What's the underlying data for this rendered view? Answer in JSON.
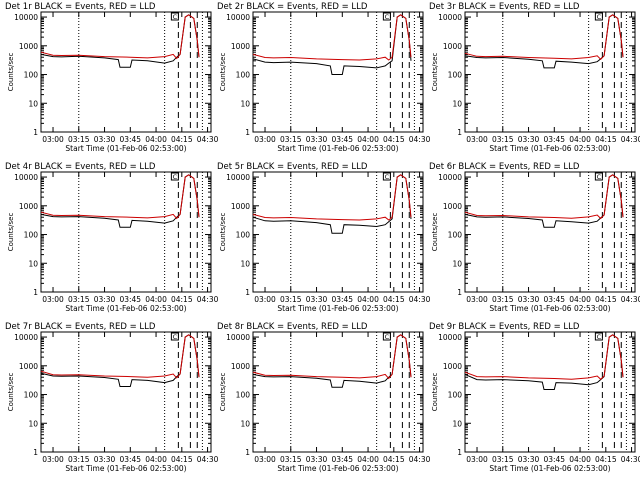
{
  "chart_data": [
    {
      "type": "line",
      "title": "Det 1r  BLACK = Events, RED = LLD",
      "ylabel": "Counts/sec",
      "xlabel": "Start Time (01-Feb-06 02:53:00)",
      "x_ticks": [
        "03:00",
        "03:15",
        "03:30",
        "03:45",
        "04:00",
        "04:15",
        "04:30"
      ],
      "ylim": [
        1,
        15000
      ],
      "y_scale": "log",
      "y_ticks": [
        "1",
        "10",
        "100",
        "1000",
        "10000"
      ],
      "series": [
        {
          "color": "#000000",
          "x": [
            "02:53",
            "03:00",
            "03:05",
            "03:15",
            "03:30",
            "03:38",
            "03:39",
            "03:45",
            "03:46",
            "03:55",
            "04:05",
            "04:10",
            "04:12",
            "04:14",
            "04:17",
            "04:19",
            "04:22",
            "04:24",
            "04:25"
          ],
          "values": [
            500,
            420,
            410,
            430,
            380,
            330,
            180,
            180,
            320,
            300,
            250,
            300,
            400,
            500,
            10000,
            12000,
            9000,
            1500,
            400
          ]
        },
        {
          "color": "#cc0000",
          "x": [
            "02:53",
            "03:00",
            "03:05",
            "03:15",
            "03:30",
            "03:45",
            "03:55",
            "04:05",
            "04:10",
            "04:12",
            "04:14",
            "04:17",
            "04:19",
            "04:22",
            "04:24",
            "04:25"
          ],
          "values": [
            600,
            470,
            460,
            470,
            420,
            400,
            380,
            420,
            500,
            360,
            500,
            10000,
            12000,
            9000,
            1500,
            400
          ]
        }
      ]
    },
    {
      "type": "line",
      "title": "Det 2r  BLACK = Events, RED = LLD",
      "ylabel": "Counts/sec",
      "xlabel": "Start Time (01-Feb-06 02:53:00)",
      "x_ticks": [
        "03:00",
        "03:15",
        "03:30",
        "03:45",
        "04:00",
        "04:15",
        "04:30"
      ],
      "ylim": [
        1,
        15000
      ],
      "y_scale": "log",
      "y_ticks": [
        "1",
        "10",
        "100",
        "1000",
        "10000"
      ],
      "series": [
        {
          "color": "#000000",
          "x": [
            "02:53",
            "03:00",
            "03:05",
            "03:15",
            "03:30",
            "03:38",
            "03:39",
            "03:45",
            "03:46",
            "03:55",
            "04:05",
            "04:10",
            "04:12",
            "04:14",
            "04:17",
            "04:19",
            "04:22",
            "04:24",
            "04:25"
          ],
          "values": [
            350,
            270,
            260,
            270,
            240,
            200,
            100,
            100,
            200,
            190,
            170,
            200,
            250,
            300,
            10000,
            12000,
            9000,
            1500,
            300
          ]
        },
        {
          "color": "#cc0000",
          "x": [
            "02:53",
            "03:00",
            "03:05",
            "03:15",
            "03:30",
            "03:45",
            "03:55",
            "04:05",
            "04:10",
            "04:12",
            "04:14",
            "04:17",
            "04:19",
            "04:22",
            "04:24",
            "04:25"
          ],
          "values": [
            500,
            390,
            380,
            390,
            350,
            330,
            320,
            350,
            400,
            320,
            400,
            10000,
            12000,
            9000,
            1500,
            400
          ]
        }
      ]
    },
    {
      "type": "line",
      "title": "Det 3r  BLACK = Events, RED = LLD",
      "ylabel": "Counts/sec",
      "xlabel": "Start Time (01-Feb-06 02:53:00)",
      "x_ticks": [
        "03:00",
        "03:15",
        "03:30",
        "03:45",
        "04:00",
        "04:15",
        "04:30"
      ],
      "ylim": [
        1,
        15000
      ],
      "y_scale": "log",
      "y_ticks": [
        "1",
        "10",
        "100",
        "1000",
        "10000"
      ],
      "series": [
        {
          "color": "#000000",
          "x": [
            "02:53",
            "03:00",
            "03:05",
            "03:15",
            "03:30",
            "03:38",
            "03:39",
            "03:45",
            "03:46",
            "03:55",
            "04:05",
            "04:10",
            "04:12",
            "04:14",
            "04:17",
            "04:19",
            "04:22",
            "04:24",
            "04:25"
          ],
          "values": [
            450,
            390,
            380,
            390,
            340,
            300,
            170,
            170,
            290,
            270,
            240,
            280,
            350,
            450,
            10000,
            12000,
            9000,
            1500,
            400
          ]
        },
        {
          "color": "#cc0000",
          "x": [
            "02:53",
            "03:00",
            "03:05",
            "03:15",
            "03:30",
            "03:45",
            "03:55",
            "04:05",
            "04:10",
            "04:12",
            "04:14",
            "04:17",
            "04:19",
            "04:22",
            "04:24",
            "04:25"
          ],
          "values": [
            550,
            430,
            420,
            430,
            390,
            370,
            350,
            390,
            450,
            340,
            450,
            10000,
            12000,
            9000,
            1500,
            400
          ]
        }
      ]
    },
    {
      "type": "line",
      "title": "Det 4r  BLACK = Events, RED = LLD",
      "ylabel": "Counts/sec",
      "xlabel": "Start Time (01-Feb-06 02:53:00)",
      "x_ticks": [
        "03:00",
        "03:15",
        "03:30",
        "03:45",
        "04:00",
        "04:15",
        "04:30"
      ],
      "ylim": [
        1,
        15000
      ],
      "y_scale": "log",
      "y_ticks": [
        "1",
        "10",
        "100",
        "1000",
        "10000"
      ],
      "series": [
        {
          "color": "#000000",
          "x": [
            "02:53",
            "03:00",
            "03:05",
            "03:15",
            "03:30",
            "03:38",
            "03:39",
            "03:45",
            "03:46",
            "03:55",
            "04:05",
            "04:10",
            "04:12",
            "04:14",
            "04:17",
            "04:19",
            "04:22",
            "04:24",
            "04:25"
          ],
          "values": [
            500,
            420,
            410,
            420,
            370,
            320,
            180,
            180,
            310,
            290,
            250,
            300,
            400,
            500,
            10000,
            12000,
            9000,
            1500,
            400
          ]
        },
        {
          "color": "#cc0000",
          "x": [
            "02:53",
            "03:00",
            "03:05",
            "03:15",
            "03:30",
            "03:45",
            "03:55",
            "04:05",
            "04:10",
            "04:12",
            "04:14",
            "04:17",
            "04:19",
            "04:22",
            "04:24",
            "04:25"
          ],
          "values": [
            600,
            470,
            460,
            470,
            420,
            400,
            380,
            420,
            500,
            360,
            500,
            10000,
            12000,
            9000,
            1500,
            400
          ]
        }
      ]
    },
    {
      "type": "line",
      "title": "Det 5r  BLACK = Events, RED = LLD",
      "ylabel": "Counts/sec",
      "xlabel": "Start Time (01-Feb-06 02:53:00)",
      "x_ticks": [
        "03:00",
        "03:15",
        "03:30",
        "03:45",
        "04:00",
        "04:15",
        "04:30"
      ],
      "ylim": [
        1,
        15000
      ],
      "y_scale": "log",
      "y_ticks": [
        "1",
        "10",
        "100",
        "1000",
        "10000"
      ],
      "series": [
        {
          "color": "#000000",
          "x": [
            "02:53",
            "03:00",
            "03:05",
            "03:15",
            "03:30",
            "03:38",
            "03:39",
            "03:45",
            "03:46",
            "03:55",
            "04:05",
            "04:10",
            "04:12",
            "04:14",
            "04:17",
            "04:19",
            "04:22",
            "04:24",
            "04:25"
          ],
          "values": [
            400,
            300,
            290,
            300,
            260,
            220,
            110,
            110,
            220,
            210,
            190,
            220,
            280,
            350,
            10000,
            12000,
            9000,
            1500,
            350
          ]
        },
        {
          "color": "#cc0000",
          "x": [
            "02:53",
            "03:00",
            "03:05",
            "03:15",
            "03:30",
            "03:45",
            "03:55",
            "04:05",
            "04:10",
            "04:12",
            "04:14",
            "04:17",
            "04:19",
            "04:22",
            "04:24",
            "04:25"
          ],
          "values": [
            500,
            390,
            380,
            390,
            350,
            330,
            320,
            350,
            400,
            320,
            400,
            10000,
            12000,
            9000,
            1500,
            400
          ]
        }
      ]
    },
    {
      "type": "line",
      "title": "Det 6r  BLACK = Events, RED = LLD",
      "ylabel": "Counts/sec",
      "xlabel": "Start Time (01-Feb-06 02:53:00)",
      "x_ticks": [
        "03:00",
        "03:15",
        "03:30",
        "03:45",
        "04:00",
        "04:15",
        "04:30"
      ],
      "ylim": [
        1,
        15000
      ],
      "y_scale": "log",
      "y_ticks": [
        "1",
        "10",
        "100",
        "1000",
        "10000"
      ],
      "series": [
        {
          "color": "#000000",
          "x": [
            "02:53",
            "03:00",
            "03:05",
            "03:15",
            "03:30",
            "03:38",
            "03:39",
            "03:45",
            "03:46",
            "03:55",
            "04:05",
            "04:10",
            "04:12",
            "04:14",
            "04:17",
            "04:19",
            "04:22",
            "04:24",
            "04:25"
          ],
          "values": [
            500,
            410,
            400,
            410,
            360,
            320,
            180,
            180,
            300,
            280,
            250,
            290,
            380,
            480,
            10000,
            12000,
            9000,
            1500,
            400
          ]
        },
        {
          "color": "#cc0000",
          "x": [
            "02:53",
            "03:00",
            "03:05",
            "03:15",
            "03:30",
            "03:45",
            "03:55",
            "04:05",
            "04:10",
            "04:12",
            "04:14",
            "04:17",
            "04:19",
            "04:22",
            "04:24",
            "04:25"
          ],
          "values": [
            600,
            460,
            450,
            460,
            410,
            390,
            370,
            410,
            480,
            360,
            480,
            10000,
            12000,
            9000,
            1500,
            400
          ]
        }
      ]
    },
    {
      "type": "line",
      "title": "Det 7r  BLACK = Events, RED = LLD",
      "ylabel": "Counts/sec",
      "xlabel": "Start Time (01-Feb-06 02:53:00)",
      "x_ticks": [
        "03:00",
        "03:15",
        "03:30",
        "03:45",
        "04:00",
        "04:15",
        "04:30"
      ],
      "ylim": [
        1,
        15000
      ],
      "y_scale": "log",
      "y_ticks": [
        "1",
        "10",
        "100",
        "1000",
        "10000"
      ],
      "series": [
        {
          "color": "#000000",
          "x": [
            "02:53",
            "03:00",
            "03:05",
            "03:15",
            "03:30",
            "03:38",
            "03:39",
            "03:45",
            "03:46",
            "03:55",
            "04:05",
            "04:10",
            "04:12",
            "04:14",
            "04:17",
            "04:19",
            "04:22",
            "04:24",
            "04:25"
          ],
          "values": [
            550,
            440,
            430,
            440,
            390,
            340,
            190,
            190,
            330,
            310,
            260,
            310,
            420,
            520,
            10000,
            12000,
            9000,
            1500,
            400
          ]
        },
        {
          "color": "#cc0000",
          "x": [
            "02:53",
            "03:00",
            "03:05",
            "03:15",
            "03:30",
            "03:45",
            "03:55",
            "04:05",
            "04:10",
            "04:12",
            "04:14",
            "04:17",
            "04:19",
            "04:22",
            "04:24",
            "04:25"
          ],
          "values": [
            650,
            490,
            480,
            490,
            440,
            420,
            400,
            440,
            520,
            380,
            520,
            10000,
            12000,
            9000,
            1500,
            400
          ]
        }
      ]
    },
    {
      "type": "line",
      "title": "Det 8r  BLACK = Events, RED = LLD",
      "ylabel": "Counts/sec",
      "xlabel": "Start Time (01-Feb-06 02:53:00)",
      "x_ticks": [
        "03:00",
        "03:15",
        "03:30",
        "03:45",
        "04:00",
        "04:15",
        "04:30"
      ],
      "ylim": [
        1,
        15000
      ],
      "y_scale": "log",
      "y_ticks": [
        "1",
        "10",
        "100",
        "1000",
        "10000"
      ],
      "series": [
        {
          "color": "#000000",
          "x": [
            "02:53",
            "03:00",
            "03:05",
            "03:15",
            "03:30",
            "03:38",
            "03:39",
            "03:45",
            "03:46",
            "03:55",
            "04:05",
            "04:10",
            "04:12",
            "04:14",
            "04:17",
            "04:19",
            "04:22",
            "04:24",
            "04:25"
          ],
          "values": [
            500,
            420,
            410,
            420,
            370,
            320,
            180,
            180,
            310,
            290,
            250,
            300,
            400,
            500,
            10000,
            12000,
            9000,
            1500,
            400
          ]
        },
        {
          "color": "#cc0000",
          "x": [
            "02:53",
            "03:00",
            "03:05",
            "03:15",
            "03:30",
            "03:45",
            "03:55",
            "04:05",
            "04:10",
            "04:12",
            "04:14",
            "04:17",
            "04:19",
            "04:22",
            "04:24",
            "04:25"
          ],
          "values": [
            600,
            470,
            460,
            470,
            420,
            400,
            380,
            420,
            500,
            360,
            500,
            10000,
            12000,
            9000,
            1500,
            400
          ]
        }
      ]
    },
    {
      "type": "line",
      "title": "Det 9r  BLACK = Events, RED = LLD",
      "ylabel": "Counts/sec",
      "xlabel": "Start Time (01-Feb-06 02:53:00)",
      "x_ticks": [
        "03:00",
        "03:15",
        "03:30",
        "03:45",
        "04:00",
        "04:15",
        "04:30"
      ],
      "ylim": [
        1,
        15000
      ],
      "y_scale": "log",
      "y_ticks": [
        "1",
        "10",
        "100",
        "1000",
        "10000"
      ],
      "series": [
        {
          "color": "#000000",
          "x": [
            "02:53",
            "03:00",
            "03:05",
            "03:15",
            "03:30",
            "03:38",
            "03:39",
            "03:45",
            "03:46",
            "03:55",
            "04:05",
            "04:10",
            "04:12",
            "04:14",
            "04:17",
            "04:19",
            "04:22",
            "04:24",
            "04:25"
          ],
          "values": [
            500,
            330,
            320,
            330,
            300,
            270,
            150,
            150,
            260,
            250,
            220,
            260,
            330,
            420,
            10000,
            12000,
            9000,
            1500,
            400
          ]
        },
        {
          "color": "#cc0000",
          "x": [
            "02:53",
            "03:00",
            "03:05",
            "03:15",
            "03:30",
            "03:45",
            "03:55",
            "04:05",
            "04:10",
            "04:12",
            "04:14",
            "04:17",
            "04:19",
            "04:22",
            "04:24",
            "04:25"
          ],
          "values": [
            600,
            420,
            410,
            420,
            380,
            360,
            340,
            380,
            440,
            340,
            440,
            10000,
            12000,
            9000,
            1500,
            400
          ]
        }
      ]
    }
  ],
  "markers": {
    "dotted_times": [
      "03:15",
      "04:05",
      "04:27"
    ],
    "dashed_times": [
      "04:13",
      "04:20",
      "04:24"
    ],
    "flag_label": "C"
  }
}
